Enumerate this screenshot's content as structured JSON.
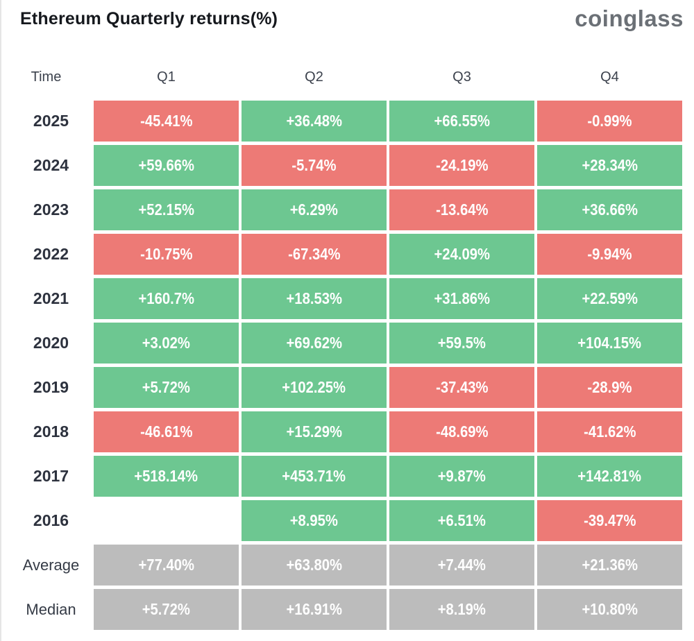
{
  "header": {
    "title": "Ethereum Quarterly returns(%)",
    "logo": "coinglass"
  },
  "colors": {
    "positive": "#6DC791",
    "negative": "#ED7A76",
    "summary": "#BCBCBC"
  },
  "table": {
    "columns": [
      "Time",
      "Q1",
      "Q2",
      "Q3",
      "Q4"
    ],
    "rows": [
      {
        "label": "2025",
        "summary": false,
        "values": [
          "-45.41%",
          "+36.48%",
          "+66.55%",
          "-0.99%"
        ]
      },
      {
        "label": "2024",
        "summary": false,
        "values": [
          "+59.66%",
          "-5.74%",
          "-24.19%",
          "+28.34%"
        ]
      },
      {
        "label": "2023",
        "summary": false,
        "values": [
          "+52.15%",
          "+6.29%",
          "-13.64%",
          "+36.66%"
        ]
      },
      {
        "label": "2022",
        "summary": false,
        "values": [
          "-10.75%",
          "-67.34%",
          "+24.09%",
          "-9.94%"
        ]
      },
      {
        "label": "2021",
        "summary": false,
        "values": [
          "+160.7%",
          "+18.53%",
          "+31.86%",
          "+22.59%"
        ]
      },
      {
        "label": "2020",
        "summary": false,
        "values": [
          "+3.02%",
          "+69.62%",
          "+59.5%",
          "+104.15%"
        ]
      },
      {
        "label": "2019",
        "summary": false,
        "values": [
          "+5.72%",
          "+102.25%",
          "-37.43%",
          "-28.9%"
        ]
      },
      {
        "label": "2018",
        "summary": false,
        "values": [
          "-46.61%",
          "+15.29%",
          "-48.69%",
          "-41.62%"
        ]
      },
      {
        "label": "2017",
        "summary": false,
        "values": [
          "+518.14%",
          "+453.71%",
          "+9.87%",
          "+142.81%"
        ]
      },
      {
        "label": "2016",
        "summary": false,
        "values": [
          "",
          "+8.95%",
          "+6.51%",
          "-39.47%"
        ]
      },
      {
        "label": "Average",
        "summary": true,
        "values": [
          "+77.40%",
          "+63.80%",
          "+7.44%",
          "+21.36%"
        ]
      },
      {
        "label": "Median",
        "summary": true,
        "values": [
          "+5.72%",
          "+16.91%",
          "+8.19%",
          "+10.80%"
        ]
      }
    ]
  },
  "chart_data": {
    "type": "heatmap",
    "title": "Ethereum Quarterly returns(%)",
    "columns": [
      "Q1",
      "Q2",
      "Q3",
      "Q4"
    ],
    "rows": [
      "2025",
      "2024",
      "2023",
      "2022",
      "2021",
      "2020",
      "2019",
      "2018",
      "2017",
      "2016",
      "Average",
      "Median"
    ],
    "values": [
      [
        -45.41,
        36.48,
        66.55,
        -0.99
      ],
      [
        59.66,
        -5.74,
        -24.19,
        28.34
      ],
      [
        52.15,
        6.29,
        -13.64,
        36.66
      ],
      [
        -10.75,
        -67.34,
        24.09,
        -9.94
      ],
      [
        160.7,
        18.53,
        31.86,
        22.59
      ],
      [
        3.02,
        69.62,
        59.5,
        104.15
      ],
      [
        5.72,
        102.25,
        -37.43,
        -28.9
      ],
      [
        -46.61,
        15.29,
        -48.69,
        -41.62
      ],
      [
        518.14,
        453.71,
        9.87,
        142.81
      ],
      [
        null,
        8.95,
        6.51,
        -39.47
      ],
      [
        77.4,
        63.8,
        7.44,
        21.36
      ],
      [
        5.72,
        16.91,
        8.19,
        10.8
      ]
    ],
    "color_rule": "green = positive return, red = negative return, gray = Average/Median summary rows, blank = no data",
    "unit": "%"
  }
}
